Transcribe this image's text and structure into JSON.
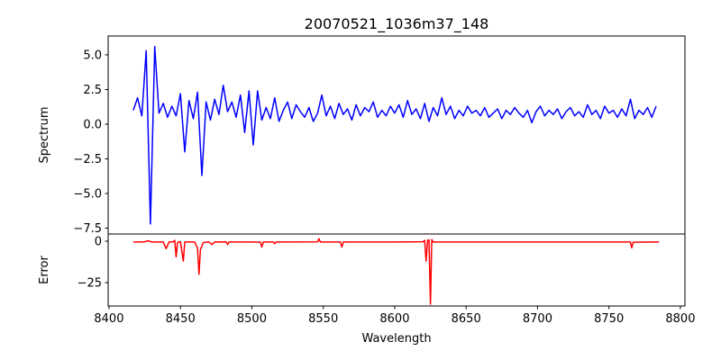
{
  "chart_data": [
    {
      "type": "line",
      "title": "20070521_1036m37_148",
      "xlabel": "",
      "ylabel": "Spectrum",
      "color": "#0000ff",
      "xlim": [
        8399.4,
        8803.2
      ],
      "ylim": [
        -7.92,
        6.36
      ],
      "yticks": [
        5.0,
        2.5,
        0.0,
        -2.5,
        -5.0,
        -7.5
      ],
      "ytick_labels": [
        "5.0",
        "2.5",
        "0.0",
        "−2.5",
        "−5.0",
        "−7.5"
      ],
      "x_start": 8417,
      "x_step": 3,
      "values": [
        1.0,
        1.9,
        0.6,
        5.3,
        -7.2,
        5.6,
        0.8,
        1.5,
        0.5,
        1.3,
        0.6,
        2.2,
        -2.0,
        1.7,
        0.4,
        2.3,
        -3.7,
        1.6,
        0.3,
        1.8,
        0.7,
        2.8,
        0.9,
        1.6,
        0.5,
        2.1,
        -0.6,
        2.4,
        -1.5,
        2.4,
        0.3,
        1.2,
        0.4,
        1.9,
        0.2,
        1.0,
        1.6,
        0.4,
        1.4,
        0.9,
        0.5,
        1.2,
        0.2,
        0.8,
        2.1,
        0.6,
        1.3,
        0.4,
        1.5,
        0.7,
        1.1,
        0.3,
        1.4,
        0.6,
        1.2,
        0.9,
        1.6,
        0.5,
        1.0,
        0.6,
        1.3,
        0.8,
        1.4,
        0.5,
        1.7,
        0.7,
        1.1,
        0.4,
        1.5,
        0.2,
        1.2,
        0.6,
        1.9,
        0.7,
        1.3,
        0.4,
        1.0,
        0.6,
        1.3,
        0.8,
        1.0,
        0.6,
        1.2,
        0.5,
        0.8,
        1.1,
        0.4,
        1.0,
        0.7,
        1.2,
        0.8,
        0.5,
        1.0,
        0.1,
        0.9,
        1.3,
        0.6,
        1.0,
        0.7,
        1.1,
        0.4,
        0.9,
        1.2,
        0.6,
        0.9,
        0.5,
        1.4,
        0.7,
        1.0,
        0.4,
        1.3,
        0.8,
        1.0,
        0.5,
        1.1,
        0.6,
        1.8,
        0.4,
        1.0,
        0.7,
        1.2,
        0.5,
        1.3
      ]
    },
    {
      "type": "line",
      "xlabel": "Wavelength",
      "ylabel": "Error",
      "color": "#ff0000",
      "xlim": [
        8399.4,
        8803.2
      ],
      "ylim": [
        -39.1,
        4.35
      ],
      "yticks": [
        0,
        -25
      ],
      "ytick_labels": [
        "0",
        "−25"
      ],
      "xticks": [
        8400,
        8450,
        8500,
        8550,
        8600,
        8650,
        8700,
        8750,
        8800
      ],
      "xtick_labels": [
        "8400",
        "8450",
        "8500",
        "8550",
        "8600",
        "8650",
        "8700",
        "8750",
        "8800"
      ],
      "points": [
        [
          8417,
          -0.5
        ],
        [
          8425,
          -0.4
        ],
        [
          8427,
          0.3
        ],
        [
          8430,
          -0.5
        ],
        [
          8438,
          -0.5
        ],
        [
          8440,
          -4.5
        ],
        [
          8442,
          -0.5
        ],
        [
          8445,
          -0.3
        ],
        [
          8446,
          0.5
        ],
        [
          8447,
          -9.5
        ],
        [
          8448,
          -0.8
        ],
        [
          8450,
          -0.2
        ],
        [
          8452,
          -12
        ],
        [
          8453,
          -0.5
        ],
        [
          8460,
          -0.5
        ],
        [
          8462,
          -4
        ],
        [
          8463,
          -20
        ],
        [
          8464,
          -5
        ],
        [
          8466,
          -0.8
        ],
        [
          8470,
          -0.5
        ],
        [
          8472,
          -2
        ],
        [
          8474,
          -0.5
        ],
        [
          8482,
          -0.4
        ],
        [
          8483,
          -2
        ],
        [
          8484,
          -0.5
        ],
        [
          8500,
          -0.5
        ],
        [
          8506,
          -0.6
        ],
        [
          8507,
          -3.5
        ],
        [
          8508,
          -0.5
        ],
        [
          8515,
          -0.5
        ],
        [
          8516,
          -1.5
        ],
        [
          8517,
          -0.5
        ],
        [
          8546,
          -0.4
        ],
        [
          8547,
          1.5
        ],
        [
          8548,
          -0.5
        ],
        [
          8562,
          -0.5
        ],
        [
          8563,
          -3.5
        ],
        [
          8564,
          -0.5
        ],
        [
          8600,
          -0.5
        ],
        [
          8620,
          -0.3
        ],
        [
          8621,
          0.5
        ],
        [
          8622,
          -12
        ],
        [
          8623,
          0.5
        ],
        [
          8624,
          0.8
        ],
        [
          8625,
          -38
        ],
        [
          8626,
          1.0
        ],
        [
          8627,
          -0.5
        ],
        [
          8660,
          -0.5
        ],
        [
          8700,
          -0.5
        ],
        [
          8765,
          -0.5
        ],
        [
          8766,
          -4
        ],
        [
          8767,
          -0.6
        ],
        [
          8785,
          -0.5
        ]
      ]
    }
  ]
}
